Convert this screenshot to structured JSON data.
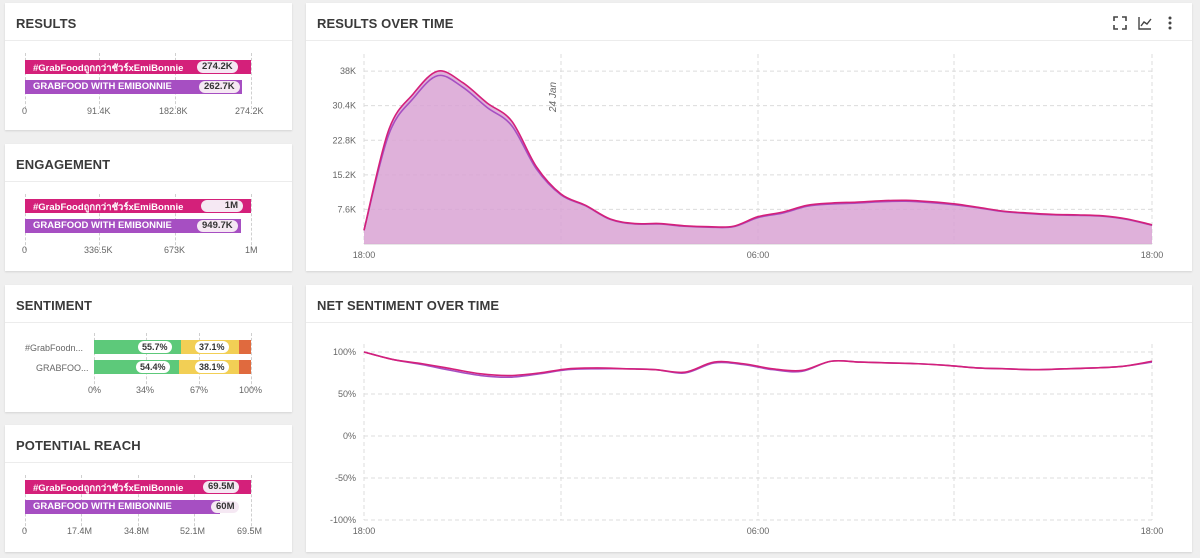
{
  "results": {
    "title": "RESULTS",
    "bars": [
      {
        "label": "#GrabFoodถูกกว่าชัวร์xEmiBonnie",
        "value": "274.2K",
        "fraction": 1.0,
        "color": "#d4207a"
      },
      {
        "label": "GRABFOOD WITH EMIBONNIE",
        "value": "262.7K",
        "fraction": 0.958,
        "color": "#a64fc2"
      }
    ],
    "ticks": [
      "0",
      "91.4K",
      "182.8K",
      "274.2K"
    ]
  },
  "engagement": {
    "title": "ENGAGEMENT",
    "bars": [
      {
        "label": "#GrabFoodถูกกว่าชัวร์xEmiBonnie",
        "value": "1M",
        "fraction": 1.0,
        "color": "#d4207a"
      },
      {
        "label": "GRABFOOD WITH EMIBONNIE",
        "value": "949.7K",
        "fraction": 0.95,
        "color": "#a64fc2"
      }
    ],
    "ticks": [
      "0",
      "336.5K",
      "673K",
      "1M"
    ]
  },
  "sentiment": {
    "title": "SENTIMENT",
    "rows": [
      {
        "label": "#GrabFoodn...",
        "positive": 55.7,
        "positive_label": "55.7%",
        "neutral": 37.1,
        "neutral_label": "37.1%",
        "negative": 7.2
      },
      {
        "label": "GRABFOO...",
        "positive": 54.4,
        "positive_label": "54.4%",
        "neutral": 38.1,
        "neutral_label": "38.1%",
        "negative": 7.5
      }
    ],
    "ticks": [
      "0%",
      "34%",
      "67%",
      "100%"
    ],
    "colors": {
      "positive": "#5dc97a",
      "neutral": "#f2cf55",
      "negative": "#e06a3e"
    }
  },
  "reach": {
    "title": "POTENTIAL REACH",
    "bars": [
      {
        "label": "#GrabFoodถูกกว่าชัวร์xEmiBonnie",
        "value": "69.5M",
        "fraction": 1.0,
        "color": "#d4207a"
      },
      {
        "label": "GRABFOOD WITH EMIBONNIE",
        "value": "60M",
        "fraction": 0.863,
        "color": "#a64fc2"
      }
    ],
    "ticks": [
      "0",
      "17.4M",
      "34.8M",
      "52.1M",
      "69.5M"
    ]
  },
  "results_over_time": {
    "title": "RESULTS OVER TIME",
    "icons": [
      "fullscreen-icon",
      "line-chart-icon",
      "more-vert-icon"
    ],
    "chart_data": {
      "type": "area",
      "title": "RESULTS OVER TIME",
      "x_ticks": [
        "18:00",
        "06:00",
        "18:00"
      ],
      "y_ticks": [
        "38K",
        "30.4K",
        "22.8K",
        "15.2K",
        "7.6K"
      ],
      "ylim": [
        0,
        40000
      ],
      "annotation": "24 Jan",
      "series": [
        {
          "name": "#GrabFoodถูกกว่าชัวร์xEmiBonnie",
          "color": "#d4207a",
          "values": [
            3000,
            25000,
            33000,
            38000,
            35500,
            31000,
            27000,
            17000,
            11000,
            8500,
            5500,
            4500,
            4500,
            4000,
            3800,
            3900,
            6000,
            7000,
            8500,
            9000,
            9200,
            9500,
            9600,
            9300,
            8800,
            8000,
            7200,
            6800,
            6500,
            6400,
            6200,
            5500,
            4200
          ]
        },
        {
          "name": "GRABFOOD WITH EMIBONNIE",
          "color": "#a64fc2",
          "values": [
            3000,
            24000,
            32000,
            37000,
            34500,
            30000,
            26000,
            16500,
            10800,
            8400,
            5400,
            4400,
            4400,
            3900,
            3700,
            3800,
            5800,
            6800,
            8300,
            8800,
            9000,
            9300,
            9400,
            9100,
            8600,
            7900,
            7100,
            6700,
            6400,
            6300,
            6100,
            5400,
            4100
          ]
        }
      ]
    }
  },
  "net_sentiment_over_time": {
    "title": "NET SENTIMENT OVER TIME",
    "chart_data": {
      "type": "line",
      "title": "NET SENTIMENT OVER TIME",
      "x_ticks": [
        "18:00",
        "06:00",
        "18:00"
      ],
      "y_ticks": [
        "100%",
        "50%",
        "0%",
        "-50%",
        "-100%"
      ],
      "ylim": [
        -100,
        100
      ],
      "series": [
        {
          "name": "#GrabFoodถูกกว่าชัวร์xEmiBonnie",
          "color": "#d4207a",
          "values": [
            100,
            91,
            86,
            80,
            74,
            72,
            75,
            80,
            81,
            80,
            79,
            76,
            88,
            86,
            80,
            78,
            89,
            88,
            87,
            86,
            84,
            81,
            80,
            79,
            80,
            81,
            83,
            89
          ]
        },
        {
          "name": "GRABFOOD WITH EMIBONNIE",
          "color": "#a64fc2",
          "values": [
            100,
            91,
            85,
            78,
            72,
            70,
            74,
            79,
            80,
            80,
            79,
            75,
            87,
            85,
            79,
            77,
            89,
            88,
            87,
            86,
            84,
            81,
            80,
            79,
            80,
            81,
            83,
            88
          ]
        }
      ]
    }
  }
}
